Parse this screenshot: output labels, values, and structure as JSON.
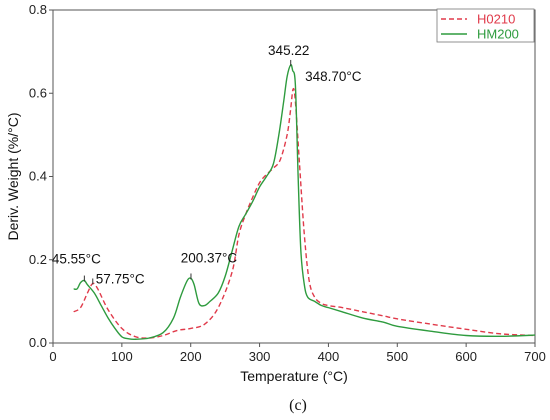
{
  "chart_data": {
    "type": "line",
    "title": "",
    "xlabel": "Temperature (°C)",
    "ylabel": "Deriv. Weight (%/°C)",
    "xlim": [
      0,
      700
    ],
    "ylim": [
      0,
      0.8
    ],
    "xticks": [
      0,
      100,
      200,
      300,
      400,
      500,
      600,
      700
    ],
    "yticks": [
      0.0,
      0.2,
      0.4,
      0.6,
      0.8
    ],
    "grid": false,
    "legend_position": "top-right",
    "panel_label": "(c)",
    "series": [
      {
        "name": "H0210",
        "color": "#e03a4a",
        "dash": "dashed",
        "points": [
          [
            30,
            0.075
          ],
          [
            40,
            0.085
          ],
          [
            50,
            0.12
          ],
          [
            57.75,
            0.143
          ],
          [
            65,
            0.13
          ],
          [
            80,
            0.08
          ],
          [
            100,
            0.035
          ],
          [
            120,
            0.015
          ],
          [
            140,
            0.012
          ],
          [
            160,
            0.018
          ],
          [
            180,
            0.03
          ],
          [
            200,
            0.035
          ],
          [
            220,
            0.045
          ],
          [
            240,
            0.085
          ],
          [
            260,
            0.17
          ],
          [
            270,
            0.26
          ],
          [
            280,
            0.31
          ],
          [
            290,
            0.35
          ],
          [
            300,
            0.385
          ],
          [
            310,
            0.405
          ],
          [
            320,
            0.42
          ],
          [
            330,
            0.44
          ],
          [
            340,
            0.5
          ],
          [
            345,
            0.56
          ],
          [
            348.7,
            0.61
          ],
          [
            352,
            0.58
          ],
          [
            358,
            0.43
          ],
          [
            365,
            0.26
          ],
          [
            372,
            0.15
          ],
          [
            380,
            0.11
          ],
          [
            390,
            0.095
          ],
          [
            400,
            0.09
          ],
          [
            420,
            0.085
          ],
          [
            450,
            0.075
          ],
          [
            480,
            0.065
          ],
          [
            500,
            0.058
          ],
          [
            550,
            0.045
          ],
          [
            600,
            0.033
          ],
          [
            650,
            0.022
          ],
          [
            700,
            0.018
          ]
        ]
      },
      {
        "name": "HM200",
        "color": "#2e9b3e",
        "dash": "solid",
        "points": [
          [
            30,
            0.13
          ],
          [
            35,
            0.13
          ],
          [
            40,
            0.145
          ],
          [
            45.55,
            0.15
          ],
          [
            50,
            0.14
          ],
          [
            60,
            0.12
          ],
          [
            70,
            0.09
          ],
          [
            80,
            0.06
          ],
          [
            90,
            0.035
          ],
          [
            100,
            0.015
          ],
          [
            110,
            0.01
          ],
          [
            120,
            0.009
          ],
          [
            140,
            0.012
          ],
          [
            160,
            0.025
          ],
          [
            175,
            0.06
          ],
          [
            185,
            0.11
          ],
          [
            195,
            0.15
          ],
          [
            200.37,
            0.155
          ],
          [
            205,
            0.14
          ],
          [
            212,
            0.095
          ],
          [
            220,
            0.09
          ],
          [
            228,
            0.1
          ],
          [
            240,
            0.12
          ],
          [
            250,
            0.16
          ],
          [
            260,
            0.22
          ],
          [
            270,
            0.28
          ],
          [
            280,
            0.31
          ],
          [
            290,
            0.34
          ],
          [
            300,
            0.375
          ],
          [
            310,
            0.4
          ],
          [
            320,
            0.43
          ],
          [
            328,
            0.5
          ],
          [
            335,
            0.58
          ],
          [
            340,
            0.64
          ],
          [
            345.22,
            0.668
          ],
          [
            348,
            0.655
          ],
          [
            352,
            0.62
          ],
          [
            356,
            0.4
          ],
          [
            360,
            0.22
          ],
          [
            365,
            0.14
          ],
          [
            370,
            0.11
          ],
          [
            380,
            0.1
          ],
          [
            390,
            0.09
          ],
          [
            400,
            0.085
          ],
          [
            420,
            0.075
          ],
          [
            450,
            0.06
          ],
          [
            480,
            0.05
          ],
          [
            500,
            0.04
          ],
          [
            550,
            0.028
          ],
          [
            600,
            0.018
          ],
          [
            650,
            0.016
          ],
          [
            700,
            0.019
          ]
        ]
      }
    ],
    "annotations": [
      {
        "text": "345.22",
        "x": 345.22,
        "y": 0.668
      },
      {
        "text": "348.70°C",
        "x": 348.7,
        "y": 0.61
      },
      {
        "text": "45.55°C",
        "x": 45.55,
        "y": 0.15
      },
      {
        "text": "57.75°C",
        "x": 57.75,
        "y": 0.143
      },
      {
        "text": "200.37°C",
        "x": 200.37,
        "y": 0.155
      }
    ]
  }
}
